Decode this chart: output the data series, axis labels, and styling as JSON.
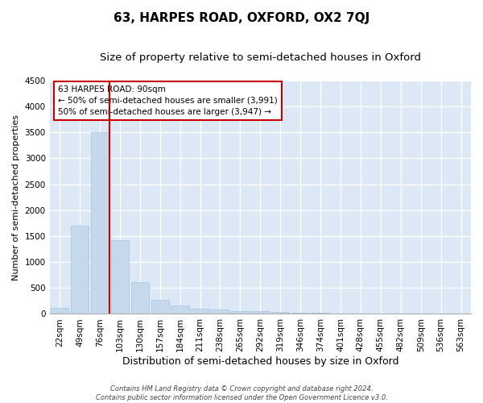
{
  "title": "63, HARPES ROAD, OXFORD, OX2 7QJ",
  "subtitle": "Size of property relative to semi-detached houses in Oxford",
  "xlabel": "Distribution of semi-detached houses by size in Oxford",
  "ylabel": "Number of semi-detached properties",
  "footnote1": "Contains HM Land Registry data © Crown copyright and database right 2024.",
  "footnote2": "Contains public sector information licensed under the Open Government Licence v3.0.",
  "categories": [
    "22sqm",
    "49sqm",
    "76sqm",
    "103sqm",
    "130sqm",
    "157sqm",
    "184sqm",
    "211sqm",
    "238sqm",
    "265sqm",
    "292sqm",
    "319sqm",
    "346sqm",
    "374sqm",
    "401sqm",
    "428sqm",
    "455sqm",
    "482sqm",
    "509sqm",
    "536sqm",
    "563sqm"
  ],
  "values": [
    120,
    1700,
    3500,
    1420,
    620,
    270,
    155,
    100,
    90,
    60,
    50,
    35,
    25,
    18,
    12,
    8,
    6,
    4,
    3,
    2,
    1
  ],
  "bar_color": "#c5d8ec",
  "bar_edge_color": "#a8c4de",
  "vline_x": 2.5,
  "vline_color": "#cc0000",
  "annotation_line1": "63 HARPES ROAD: 90sqm",
  "annotation_line2": "← 50% of semi-detached houses are smaller (3,991)",
  "annotation_line3": "50% of semi-detached houses are larger (3,947) →",
  "annotation_box_color": "white",
  "annotation_box_edge_color": "#cc0000",
  "ylim": [
    0,
    4500
  ],
  "yticks": [
    0,
    500,
    1000,
    1500,
    2000,
    2500,
    3000,
    3500,
    4000,
    4500
  ],
  "background_color": "#dce8f5",
  "grid_color": "white",
  "title_fontsize": 11,
  "subtitle_fontsize": 9.5,
  "ylabel_fontsize": 8,
  "xlabel_fontsize": 9,
  "tick_fontsize": 7.5,
  "annotation_fontsize": 7.5,
  "footnote_fontsize": 6
}
